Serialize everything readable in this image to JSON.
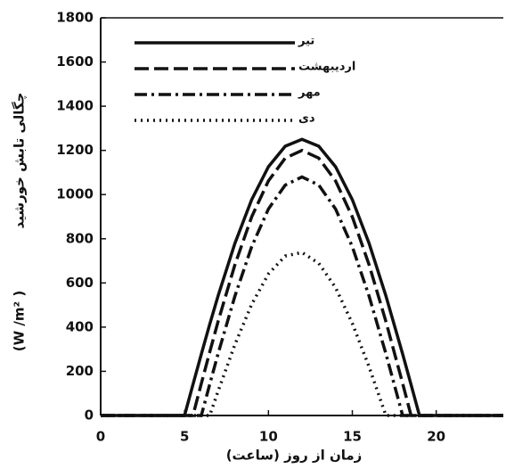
{
  "chart_data": {
    "type": "line",
    "y_label": "چگالی تابش خورشید",
    "y_unit": "(W /m² )",
    "x_label": "زمان از روز (ساعت)",
    "x": [
      0,
      4,
      5,
      5.5,
      6,
      6.5,
      7,
      8,
      9,
      10,
      11,
      12,
      13,
      14,
      15,
      16,
      17,
      18,
      18.5,
      19,
      20,
      24
    ],
    "series": [
      {
        "name": "تیر",
        "color": "#111111",
        "dash": "solid",
        "values": [
          0,
          0,
          0,
          140,
          278,
          413,
          542,
          779,
          977,
          1126,
          1219,
          1250,
          1219,
          1126,
          977,
          779,
          542,
          278,
          140,
          0,
          0,
          0
        ]
      },
      {
        "name": "اردیبهشت",
        "color": "#111111",
        "dash": "dashed",
        "values": [
          0,
          0,
          0,
          0,
          145,
          287,
          426,
          682,
          899,
          1062,
          1165,
          1200,
          1165,
          1062,
          899,
          682,
          426,
          145,
          0,
          0,
          0,
          0
        ]
      },
      {
        "name": "مهر",
        "color": "#111111",
        "dash": "dashdot",
        "values": [
          0,
          0,
          0,
          0,
          0,
          141,
          280,
          540,
          764,
          935,
          1043,
          1080,
          1043,
          935,
          764,
          540,
          280,
          0,
          0,
          0,
          0,
          0
        ]
      },
      {
        "name": "دی",
        "color": "#111111",
        "dash": "dotted",
        "values": [
          0,
          0,
          0,
          0,
          0,
          0,
          110,
          321,
          503,
          641,
          722,
          738,
          689,
          579,
          417,
          220,
          0,
          0,
          0,
          0,
          0,
          0
        ]
      }
    ],
    "xlim": [
      0,
      24
    ],
    "xticks": [
      0,
      5,
      10,
      15,
      20
    ],
    "ylim": [
      0,
      1800
    ],
    "yticks": [
      0,
      200,
      400,
      600,
      800,
      1000,
      1200,
      1400,
      1600,
      1800
    ],
    "legend": "top-left"
  }
}
